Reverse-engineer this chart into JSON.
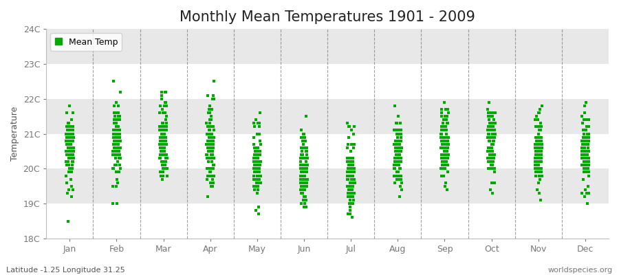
{
  "title": "Monthly Mean Temperatures 1901 - 2009",
  "ylabel": "Temperature",
  "xlabel_labels": [
    "Jan",
    "Feb",
    "Mar",
    "Apr",
    "May",
    "Jun",
    "Jul",
    "Aug",
    "Sep",
    "Oct",
    "Nov",
    "Dec"
  ],
  "ytick_labels": [
    "18C",
    "19C",
    "20C",
    "21C",
    "22C",
    "23C",
    "24C"
  ],
  "ytick_values": [
    18,
    19,
    20,
    21,
    22,
    23,
    24
  ],
  "ylim": [
    18,
    24
  ],
  "figure_bg": "#ffffff",
  "plot_bg": "#ffffff",
  "marker_color": "#00aa00",
  "marker": "s",
  "marker_size": 2.5,
  "legend_label": "Mean Temp",
  "footer_left": "Latitude -1.25 Longitude 31.25",
  "footer_right": "worldspecies.org",
  "title_fontsize": 15,
  "label_fontsize": 9,
  "tick_fontsize": 9,
  "footer_fontsize": 8,
  "band_colors_odd": "#e8e8e8",
  "band_colors_even": "#ffffff",
  "monthly_means": [
    20.5,
    20.75,
    20.9,
    20.65,
    20.15,
    19.95,
    19.85,
    20.45,
    20.65,
    20.75,
    20.5,
    20.45
  ],
  "monthly_stds": [
    0.55,
    0.7,
    0.65,
    0.65,
    0.55,
    0.55,
    0.55,
    0.55,
    0.5,
    0.55,
    0.55,
    0.55
  ],
  "years": 109
}
